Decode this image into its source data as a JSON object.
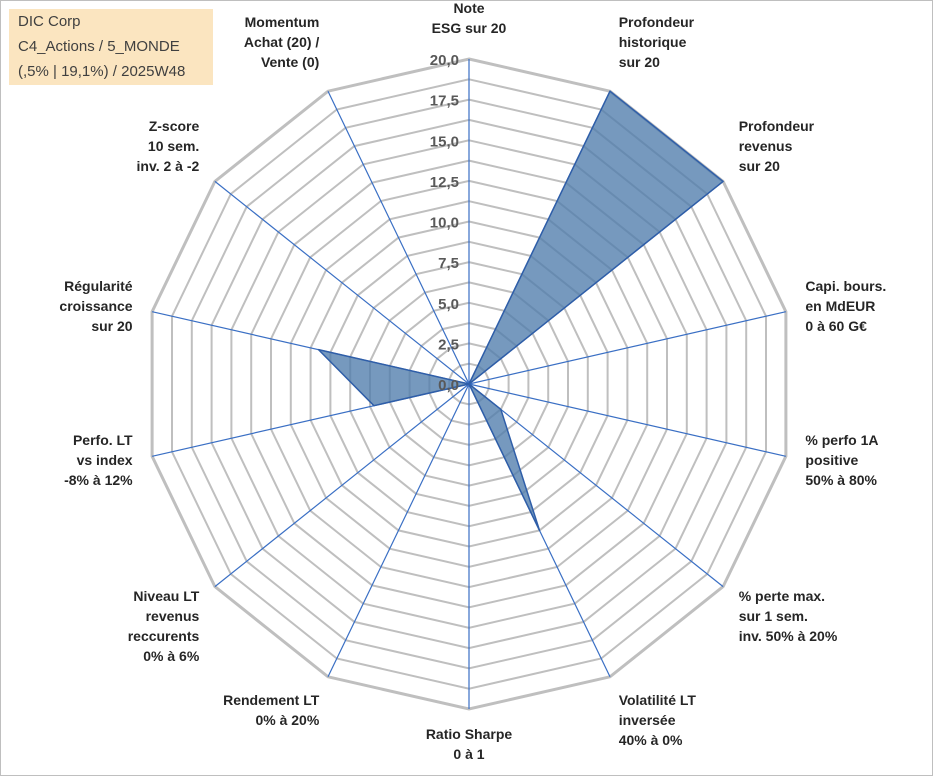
{
  "header": {
    "company": "DIC Corp",
    "line2": "C4_Actions / 5_MONDE",
    "line3": "(,5% | 19,1%) / 2025W48"
  },
  "colors": {
    "grid": "#bfbfbf",
    "axis": "#3a6fc4",
    "fill": "#4f7cac",
    "stroke": "#2f5ea8",
    "title_bg": "#fbe5c0"
  },
  "chart_data": {
    "type": "radar",
    "title": "",
    "rmin": 0,
    "rmax": 20,
    "tick_values": [
      0,
      2.5,
      5,
      7.5,
      10,
      12.5,
      15,
      17.5,
      20
    ],
    "tick_labels": [
      "0,0",
      "2,5",
      "5,0",
      "7,5",
      "10,0",
      "12,5",
      "15,0",
      "17,5",
      "20,0"
    ],
    "categories": [
      [
        "Note",
        "ESG sur 20"
      ],
      [
        "Profondeur",
        "historique",
        "sur 20"
      ],
      [
        "Profondeur",
        "revenus",
        "sur 20"
      ],
      [
        "Capi. bours.",
        "en MdEUR",
        "0 à 60 G€"
      ],
      [
        "% perfo 1A",
        "positive",
        "50% à 80%"
      ],
      [
        "% perte max.",
        "sur 1 sem.",
        "inv. 50% à 20%"
      ],
      [
        "Volatilité LT",
        "inversée",
        "40% à 0%"
      ],
      [
        "Ratio Sharpe",
        "0 à 1"
      ],
      [
        "Rendement LT",
        "0% à 20%"
      ],
      [
        "Niveau LT",
        "revenus",
        "reccurents",
        "0% à 6%"
      ],
      [
        "Perfo. LT",
        "vs index",
        "-8% à 12%"
      ],
      [
        "Régularité",
        "croissance",
        "sur 20"
      ],
      [
        "Z-score",
        "10 sem.",
        "inv. 2 à -2"
      ],
      [
        "Momentum",
        "Achat (20) /",
        "Vente (0)"
      ]
    ],
    "series": [
      {
        "name": "DIC Corp",
        "values": [
          0,
          20,
          20,
          0,
          0,
          2.5,
          10,
          0,
          0,
          0,
          6,
          9.5,
          0,
          0
        ]
      }
    ]
  }
}
